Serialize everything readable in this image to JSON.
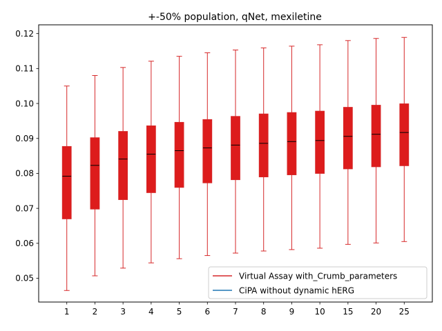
{
  "chart_data": {
    "type": "box",
    "title": "+-50% population, qNet, mexiletine",
    "xlabel": "",
    "ylabel": "",
    "categories": [
      "1",
      "2",
      "3",
      "4",
      "5",
      "6",
      "7",
      "8",
      "9",
      "10",
      "15",
      "20",
      "25"
    ],
    "ylim": [
      0.0432,
      0.1225
    ],
    "yticks": [
      0.05,
      0.06,
      0.07,
      0.08,
      0.09,
      0.1,
      0.11,
      0.12
    ],
    "ytick_labels": [
      "0.05",
      "0.06",
      "0.07",
      "0.08",
      "0.09",
      "0.10",
      "0.11",
      "0.12"
    ],
    "grid": false,
    "legend_position": "lower-right",
    "series": [
      {
        "name": "Virtual Assay with_Crumb_parameters",
        "color": "#d62728",
        "boxes": [
          {
            "whislo": 0.0465,
            "q1": 0.067,
            "med": 0.0792,
            "q3": 0.0877,
            "whishi": 0.105
          },
          {
            "whislo": 0.0507,
            "q1": 0.0698,
            "med": 0.0823,
            "q3": 0.0902,
            "whishi": 0.108
          },
          {
            "whislo": 0.0529,
            "q1": 0.0725,
            "med": 0.0841,
            "q3": 0.092,
            "whishi": 0.1103
          },
          {
            "whislo": 0.0544,
            "q1": 0.0745,
            "med": 0.0855,
            "q3": 0.0936,
            "whishi": 0.1121
          },
          {
            "whislo": 0.0556,
            "q1": 0.076,
            "med": 0.0865,
            "q3": 0.0946,
            "whishi": 0.1135
          },
          {
            "whislo": 0.0565,
            "q1": 0.0773,
            "med": 0.0873,
            "q3": 0.0954,
            "whishi": 0.1145
          },
          {
            "whislo": 0.0572,
            "q1": 0.0782,
            "med": 0.0881,
            "q3": 0.0963,
            "whishi": 0.1153
          },
          {
            "whislo": 0.0578,
            "q1": 0.079,
            "med": 0.0886,
            "q3": 0.097,
            "whishi": 0.1159
          },
          {
            "whislo": 0.0582,
            "q1": 0.0796,
            "med": 0.0891,
            "q3": 0.0974,
            "whishi": 0.1164
          },
          {
            "whislo": 0.0586,
            "q1": 0.08,
            "med": 0.0894,
            "q3": 0.0978,
            "whishi": 0.1168
          },
          {
            "whislo": 0.0597,
            "q1": 0.0813,
            "med": 0.0906,
            "q3": 0.0989,
            "whishi": 0.118
          },
          {
            "whislo": 0.0601,
            "q1": 0.0819,
            "med": 0.0912,
            "q3": 0.0995,
            "whishi": 0.1186
          },
          {
            "whislo": 0.0605,
            "q1": 0.0822,
            "med": 0.0917,
            "q3": 0.0999,
            "whishi": 0.1189
          }
        ]
      },
      {
        "name": "CiPA without dynamic hERG",
        "color": "#1f77b4",
        "boxes": []
      }
    ]
  }
}
